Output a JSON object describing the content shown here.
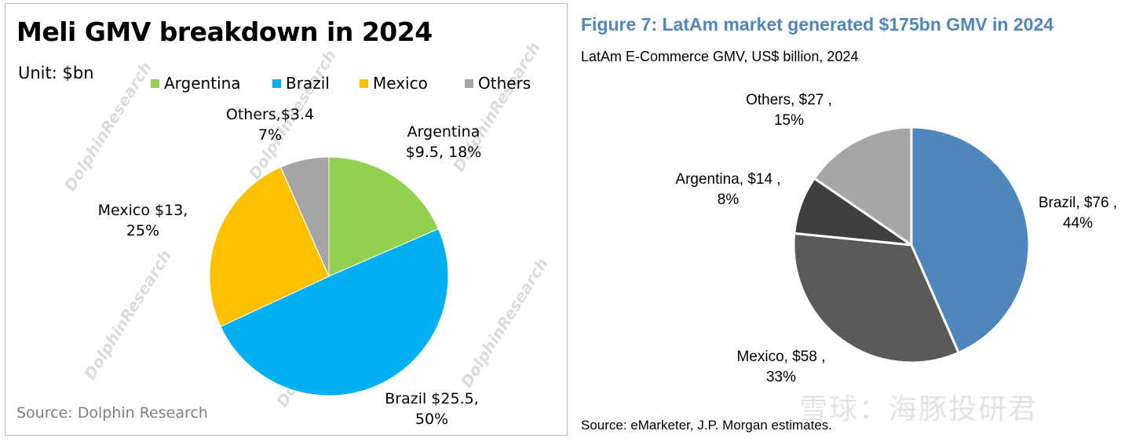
{
  "left": {
    "title": "Meli GMV breakdown in 2024",
    "unit": "Unit: $bn",
    "source": "Source:  Dolphin Research",
    "watermark": "DolphinResearch",
    "legend": [
      {
        "label": "Argentina",
        "color": "#92d050"
      },
      {
        "label": "Brazil",
        "color": "#00b0f0"
      },
      {
        "label": "Mexico",
        "color": "#ffc000"
      },
      {
        "label": "Others",
        "color": "#a6a6a6"
      }
    ],
    "labels": {
      "argentina": [
        "Argentina",
        "$9.5, 18%"
      ],
      "brazil": [
        "Brazil $25.5,",
        "50%"
      ],
      "mexico": [
        "Mexico $13,",
        "25%"
      ],
      "others": [
        "Others,$3.4",
        "7%"
      ]
    }
  },
  "right": {
    "title": "Figure 7: LatAm market generated $175bn GMV in 2024",
    "subtitle": "LatAm E-Commerce GMV, US$ billion, 2024",
    "source": "Source: eMarketer, J.P. Morgan estimates.",
    "watermark": "雪球：海豚投研君",
    "labels": {
      "brazil": [
        "Brazil, $76 ,",
        "44%"
      ],
      "mexico": [
        "Mexico, $58 ,",
        "33%"
      ],
      "argentina": [
        "Argentina, $14 ,",
        "8%"
      ],
      "others": [
        "Others, $27 ,",
        "15%"
      ]
    }
  },
  "chart_data": [
    {
      "type": "pie",
      "title": "Meli GMV breakdown in 2024",
      "unit": "$bn",
      "legend_position": "top",
      "slices": [
        {
          "name": "Argentina",
          "value": 9.5,
          "percent": 18,
          "color": "#92d050"
        },
        {
          "name": "Brazil",
          "value": 25.5,
          "percent": 50,
          "color": "#00b0f0"
        },
        {
          "name": "Mexico",
          "value": 13,
          "percent": 25,
          "color": "#ffc000"
        },
        {
          "name": "Others",
          "value": 3.4,
          "percent": 7,
          "color": "#a6a6a6"
        }
      ]
    },
    {
      "type": "pie",
      "title": "Figure 7: LatAm market generated $175bn GMV in 2024",
      "subtitle": "LatAm E-Commerce GMV, US$ billion, 2024",
      "slices": [
        {
          "name": "Brazil",
          "value": 76,
          "percent": 44,
          "color": "#4f86bd"
        },
        {
          "name": "Mexico",
          "value": 58,
          "percent": 33,
          "color": "#595a5c"
        },
        {
          "name": "Argentina",
          "value": 14,
          "percent": 8,
          "color": "#3f3f3f"
        },
        {
          "name": "Others",
          "value": 27,
          "percent": 15,
          "color": "#a6a6a6"
        }
      ]
    }
  ]
}
